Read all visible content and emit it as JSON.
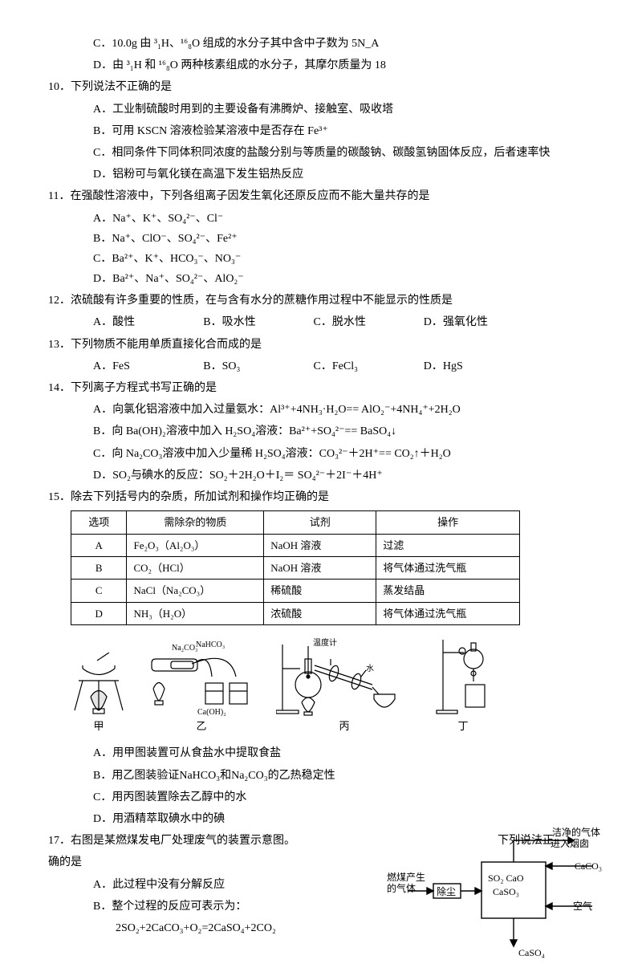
{
  "q9": {
    "C": "C．10.0g 由 ³₁H、¹⁶₈O 组成的水分子其中含中子数为 5N_A",
    "D": "D．由 ³₁H 和 ¹⁶₈O 两种核素组成的水分子，其摩尔质量为 18"
  },
  "q10": {
    "stem": "10．下列说法不正确的是",
    "A": "A．工业制硫酸时用到的主要设备有沸腾炉、接触室、吸收塔",
    "B": "B．可用 KSCN 溶液检验某溶液中是否存在 Fe³⁺",
    "C": "C．相同条件下同体积同浓度的盐酸分别与等质量的碳酸钠、碳酸氢钠固体反应，后者速率快",
    "D": "D．铝粉可与氧化镁在高温下发生铝热反应"
  },
  "q11": {
    "stem": "11．在强酸性溶液中，下列各组离子因发生氧化还原反应而不能大量共存的是",
    "A": "A．Na⁺、K⁺、SO₄²⁻、Cl⁻",
    "B": "B．Na⁺、ClO⁻、SO₄²⁻、Fe²⁺",
    "C": "C．Ba²⁺、K⁺、HCO₃⁻、NO₃⁻",
    "D": "D．Ba²⁺、Na⁺、SO₄²⁻、AlO₂⁻"
  },
  "q12": {
    "stem": "12．浓硫酸有许多重要的性质，在与含有水分的蔗糖作用过程中不能显示的性质是",
    "A": "A．酸性",
    "B": "B．吸水性",
    "C": "C．脱水性",
    "D": "D．强氧化性"
  },
  "q13": {
    "stem": "13．下列物质不能用单质直接化合而成的是",
    "A": "A．FeS",
    "B": "B．SO₃",
    "C": "C．FeCl₃",
    "D": "D．HgS"
  },
  "q14": {
    "stem": "14．下列离子方程式书写正确的是",
    "A": "A．向氯化铝溶液中加入过量氨水：Al³⁺+4NH₃·H₂O== AlO₂⁻+4NH₄⁺+2H₂O",
    "B": "B．向 Ba(OH)₂溶液中加入 H₂SO₄溶液：Ba²⁺+SO₄²⁻== BaSO₄↓",
    "C": "C．向 Na₂CO₃溶液中加入少量稀 H₂SO₄溶液：CO₃²⁻＋2H⁺== CO₂↑＋H₂O",
    "D": "D．SO₂与碘水的反应：SO₂＋2H₂O＋I₂＝ SO₄²⁻＋2I⁻＋4H⁺"
  },
  "q15": {
    "stem": "15．除去下列括号内的杂质，所加试剂和操作均正确的是",
    "table": {
      "headers": [
        "选项",
        "需除杂的物质",
        "试剂",
        "操作"
      ],
      "rows": [
        [
          "A",
          "Fe₂O₃（Al₂O₃）",
          "NaOH 溶液",
          "过滤"
        ],
        [
          "B",
          "CO₂（HCl）",
          "NaOH 溶液",
          "将气体通过洗气瓶"
        ],
        [
          "C",
          "NaCl（Na₂CO₃）",
          "稀硫酸",
          "蒸发结晶"
        ],
        [
          "D",
          "NH₃（H₂O）",
          "浓硫酸",
          "将气体通过洗气瓶"
        ]
      ],
      "col_widths": [
        "60px",
        "170px",
        "140px",
        "190px"
      ]
    }
  },
  "fig16": {
    "labels": {
      "a": "甲",
      "b": "乙",
      "c": "丙",
      "d": "丁"
    },
    "annot": {
      "naco3": "Na₂CO₃",
      "nahco3": "NaHCO₃",
      "caoh2": "Ca(OH)₂",
      "thermo": "温度计",
      "water": "水"
    }
  },
  "q16": {
    "A": "A．用甲图装置可从食盐水中提取食盐",
    "B": "B．用乙图装验证NaHCO₃和Na₂CO₃的乙热稳定性",
    "C": "C．用丙图装置除去乙醇中的水",
    "D": "D．用酒精萃取碘水中的碘"
  },
  "q17": {
    "stem": "17．右图是某燃煤发电厂处理废气的装置示意图。",
    "tail": "下列说法正",
    "cont": "确的是",
    "A": "A．此过程中没有分解反应",
    "B": "B．整个过程的反应可表示为：",
    "eq": "2SO₂+2CaCO₃+O₂=2CaSO₄+2CO₂"
  },
  "flow": {
    "clean": "洁净的气体",
    "to_stack": "进入烟囱",
    "caco3": "CaCO₃",
    "so2cao": "SO₂ CaO",
    "caso3": "CaSO₃",
    "air": "空气",
    "caso4": "CaSO₄",
    "burn": "燃煤产生",
    "gas": "的气体",
    "dust": "除尘"
  }
}
